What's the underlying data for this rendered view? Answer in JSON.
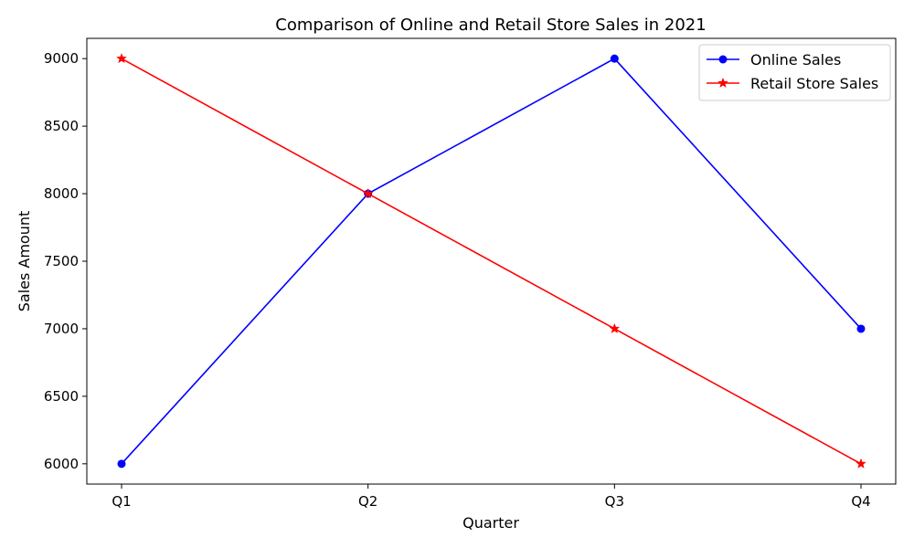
{
  "chart_data": {
    "type": "line",
    "title": "Comparison of Online and Retail Store Sales in 2021",
    "xlabel": "Quarter",
    "ylabel": "Sales Amount",
    "categories": [
      "Q1",
      "Q2",
      "Q3",
      "Q4"
    ],
    "ylim": [
      5850,
      9150
    ],
    "yticks": [
      6000,
      6500,
      7000,
      7500,
      8000,
      8500,
      9000
    ],
    "grid": false,
    "legend_position": "top-right",
    "series": [
      {
        "name": "Online Sales",
        "values": [
          6000,
          8000,
          9000,
          7000
        ],
        "color": "#0000ff",
        "marker": "circle"
      },
      {
        "name": "Retail Store Sales",
        "values": [
          9000,
          8000,
          7000,
          6000
        ],
        "color": "#ff0000",
        "marker": "star"
      }
    ]
  }
}
